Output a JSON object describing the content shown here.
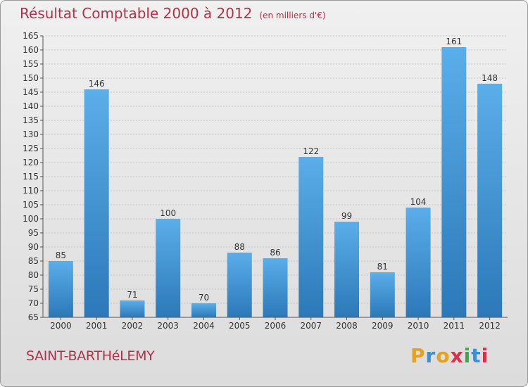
{
  "header": {
    "title": "Résultat Comptable 2000 à 2012",
    "subtitle": "(en milliers d'€)"
  },
  "footer": {
    "commune": "SAINT-BARTHéLEMY",
    "logo_letters": [
      "P",
      "r",
      "o",
      "x",
      "i",
      "t",
      "i"
    ]
  },
  "colors": {
    "title": "#b0324a",
    "bar_light": "#5aaeea",
    "bar_dark": "#2c78b8",
    "logo": [
      "#e8a11c",
      "#3a8fd6",
      "#e8a11c",
      "#d9304c",
      "#3aa84a",
      "#3a8fd6",
      "#d9304c"
    ]
  },
  "chart_data": {
    "type": "bar",
    "title": "Résultat Comptable 2000 à 2012",
    "subtitle": "(en milliers d'€)",
    "categories": [
      "2000",
      "2001",
      "2002",
      "2003",
      "2004",
      "2005",
      "2006",
      "2007",
      "2008",
      "2009",
      "2010",
      "2011",
      "2012"
    ],
    "values": [
      85,
      146,
      71,
      100,
      70,
      88,
      86,
      122,
      99,
      81,
      104,
      161,
      148
    ],
    "ylim": [
      65,
      165
    ],
    "yticks": [
      65,
      70,
      75,
      80,
      85,
      90,
      95,
      100,
      105,
      110,
      115,
      120,
      125,
      130,
      135,
      140,
      145,
      150,
      155,
      160,
      165
    ],
    "xlabel": "",
    "ylabel": "",
    "grid": true,
    "data_labels": true
  }
}
